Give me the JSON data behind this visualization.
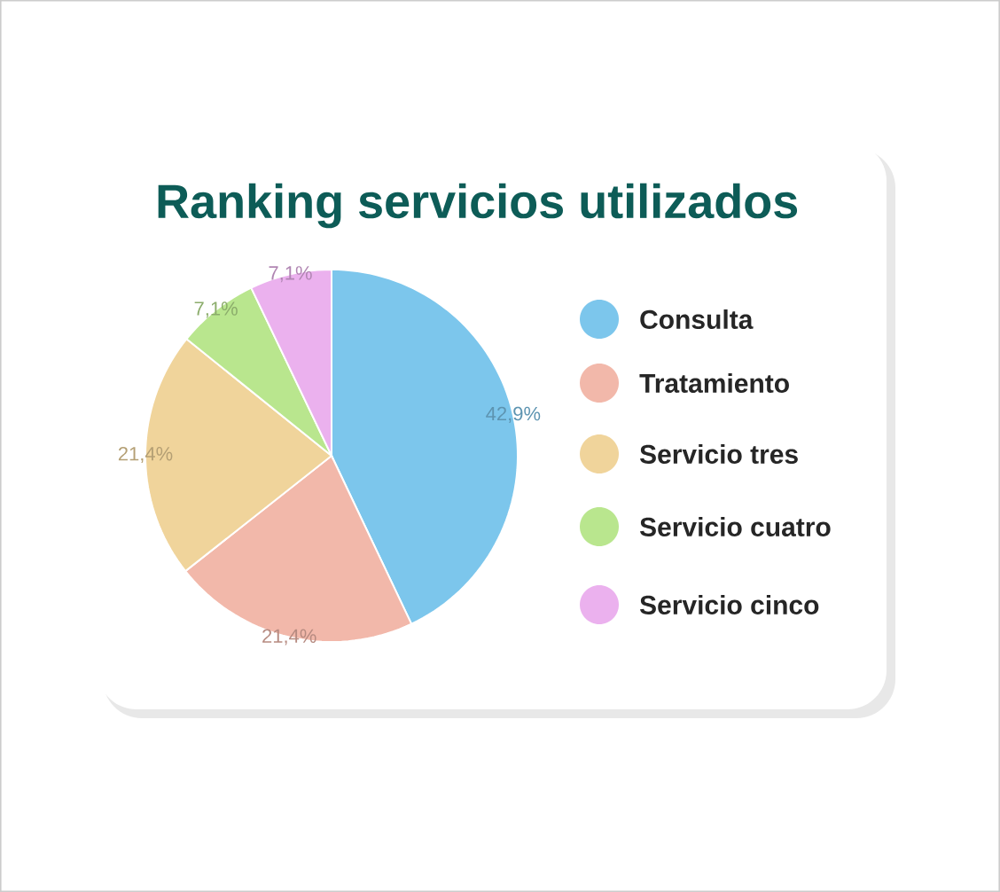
{
  "chart_data": {
    "type": "pie",
    "title": "Ranking servicios utilizados",
    "categories": [
      "Consulta",
      "Tratamiento",
      "Servicio tres",
      "Servicio cuatro",
      "Servicio cinco"
    ],
    "values": [
      42.9,
      21.4,
      21.4,
      7.1,
      7.1
    ],
    "colors": [
      "#7cc6ec",
      "#f2b8aa",
      "#f0d49b",
      "#b9e68e",
      "#ebb1ee"
    ],
    "value_labels": [
      "42,9%",
      "21,4%",
      "21,4%",
      "7,1%",
      "7,1%"
    ],
    "legend": "right"
  }
}
